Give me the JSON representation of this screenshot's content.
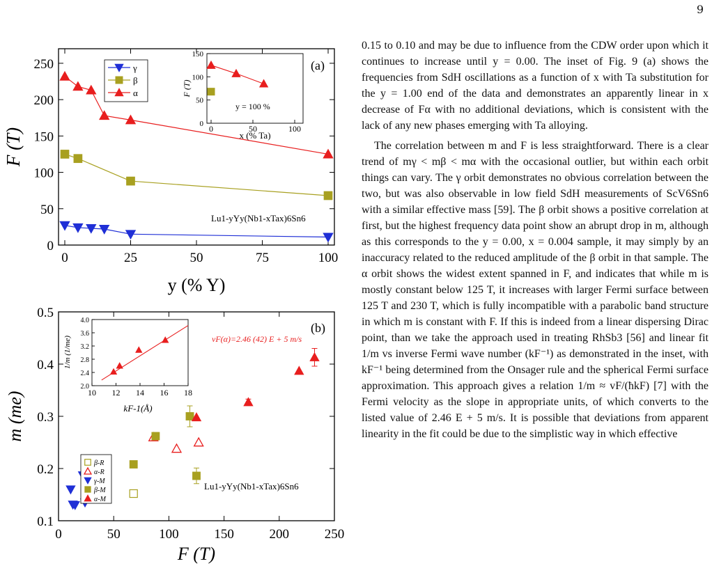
{
  "page_number": "9",
  "text_column": {
    "paragraphs": [
      "0.15 to 0.10 and may be due to influence from the CDW order upon which it continues to increase until y = 0.00. The inset of Fig. 9 (a) shows the frequencies from SdH oscillations as a function of x with Ta substitution for the y = 1.00 end of the data and demonstrates an apparently linear in x decrease of Fα with no additional deviations, which is consistent with the lack of any new phases emerging with Ta alloying.",
      "The correlation between m and F is less straightforward. There is a clear trend of mγ < mβ < mα with the occasional outlier, but within each orbit things can vary. The γ orbit demonstrates no obvious correlation between the two, but was also observable in low field SdH measurements of ScV6Sn6 with a similar effective mass [59]. The β orbit shows a positive correlation at first, but the highest frequency data point show an abrupt drop in m, although as this corresponds to the y = 0.00, x = 0.004 sample, it may simply by an inaccuracy related to the reduced amplitude of the β orbit in that sample. The α orbit shows the widest extent spanned in F, and indicates that while m is mostly constant below 125 T, it increases with larger Fermi surface between 125 T and 230 T, which is fully incompatible with a parabolic band structure in which m is constant with F. If this is indeed from a linear dispersing Dirac point, than we take the approach used in treating RhSb3 [56] and linear fit 1/m vs inverse Fermi wave number (kF⁻¹) as demonstrated in the inset, with kF⁻¹ being determined from the Onsager rule and the spherical Fermi surface approximation. This approach gives a relation 1/m ≈ vF/(ħkF) [7] with the Fermi velocity as the slope in appropriate units, of which converts to the listed value of 2.46 E + 5 m/s. It is possible that deviations from apparent linearity in the fit could be due to the simplistic way in which effective"
    ]
  },
  "chart_data": [
    {
      "type": "line",
      "panel_label": "(a)",
      "xlabel": "y (% Y)",
      "ylabel": "F (T)",
      "xlim": [
        0,
        100
      ],
      "ylim": [
        0,
        270
      ],
      "xticks": [
        0,
        25,
        50,
        75,
        100
      ],
      "yticks": [
        0,
        50,
        100,
        150,
        200,
        250
      ],
      "compound": "Lu1-yYy(Nb1-xTax)6Sn6",
      "legend": [
        "γ",
        "β",
        "α"
      ],
      "legend_position": "top-left",
      "series": [
        {
          "name": "γ",
          "marker": "triangle-down",
          "color": "#1f2fd6",
          "x": [
            0,
            5,
            10,
            15,
            25,
            100
          ],
          "y": [
            27,
            24,
            23,
            22,
            15,
            11
          ]
        },
        {
          "name": "β",
          "marker": "square",
          "color": "#a8a020",
          "x": [
            0,
            5,
            25,
            100
          ],
          "y": [
            125,
            119,
            88,
            68
          ]
        },
        {
          "name": "α",
          "marker": "triangle-up",
          "color": "#e81e1e",
          "x": [
            0,
            5,
            10,
            15,
            25,
            100
          ],
          "y": [
            232,
            218,
            213,
            178,
            172,
            125
          ]
        }
      ],
      "inset": {
        "xlabel": "x (% Ta)",
        "ylabel": "F (T)",
        "xlim": [
          -5,
          110
        ],
        "ylim": [
          0,
          150
        ],
        "xticks": [
          0,
          50,
          100
        ],
        "yticks": [
          0,
          50,
          100,
          150
        ],
        "annotation": "y = 100 %",
        "series": [
          {
            "name": "α",
            "marker": "triangle-up",
            "color": "#e81e1e",
            "x": [
              0,
              30,
              63
            ],
            "y": [
              125,
              107,
              85
            ]
          },
          {
            "name": "β",
            "marker": "square",
            "color": "#a8a020",
            "x": [
              0
            ],
            "y": [
              68
            ]
          }
        ]
      }
    },
    {
      "type": "scatter",
      "panel_label": "(b)",
      "xlabel": "F (T)",
      "ylabel": "m (me)",
      "xlim": [
        0,
        250
      ],
      "ylim": [
        0.1,
        0.5
      ],
      "xticks": [
        0,
        50,
        100,
        150,
        200,
        250
      ],
      "yticks": [
        0.1,
        0.2,
        0.3,
        0.4,
        0.5
      ],
      "compound": "Lu1-yYy(Nb1-xTax)6Sn6",
      "legend": [
        "β-R",
        "α-R",
        "γ-M",
        "β-M",
        "α-M"
      ],
      "legend_position": "middle-left",
      "series": [
        {
          "name": "β-R",
          "marker": "square-open",
          "color": "#a8a020",
          "points": [
            [
              68,
              0.152
            ]
          ]
        },
        {
          "name": "α-R",
          "marker": "triangle-up-open",
          "color": "#e81e1e",
          "points": [
            [
              86,
              0.26
            ],
            [
              107,
              0.238
            ],
            [
              127,
              0.25
            ]
          ]
        },
        {
          "name": "γ-M",
          "marker": "triangle-down",
          "color": "#1f2fd6",
          "points": [
            [
              11,
              0.16
            ],
            [
              13,
              0.131
            ],
            [
              15,
              0.13
            ],
            [
              22,
              0.187
            ],
            [
              24,
              0.135
            ]
          ]
        },
        {
          "name": "β-M",
          "marker": "square",
          "color": "#a8a020",
          "points": [
            [
              68,
              0.208
            ],
            [
              88,
              0.262
            ],
            [
              119,
              0.3
            ],
            [
              125,
              0.186
            ]
          ],
          "errors": [
            0.0,
            0.007,
            0.02,
            0.015
          ]
        },
        {
          "name": "α-M",
          "marker": "triangle-up",
          "color": "#e81e1e",
          "points": [
            [
              125,
              0.298
            ],
            [
              172,
              0.327
            ],
            [
              218,
              0.387
            ],
            [
              232,
              0.413
            ]
          ],
          "errors": [
            0.0,
            0.006,
            0.0,
            0.017
          ]
        }
      ],
      "inset": {
        "xlabel": "kF-1(Å)",
        "ylabel": "1/m (1/me)",
        "xlim": [
          10,
          18
        ],
        "ylim": [
          2.0,
          4.0
        ],
        "xticks": [
          10,
          12,
          14,
          16,
          18
        ],
        "yticks": [
          2.0,
          2.4,
          2.8,
          3.2,
          3.6,
          4.0
        ],
        "annotation": "vF(α)=2.46 (42) E + 5 m/s",
        "points_x": [
          11.8,
          12.3,
          13.9,
          16.1
        ],
        "points_y": [
          2.42,
          2.6,
          3.08,
          3.38
        ],
        "fit_line_x": [
          10.8,
          18
        ],
        "fit_line_y": [
          2.17,
          3.82
        ]
      }
    }
  ]
}
